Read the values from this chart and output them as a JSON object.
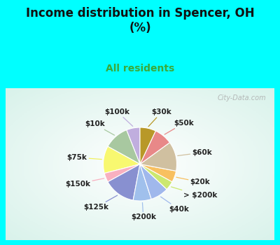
{
  "title": "Income distribution in Spencer, OH\n(%)",
  "subtitle": "All residents",
  "title_color": "#111111",
  "subtitle_color": "#3aaa3a",
  "background_outer": "#00ffff",
  "background_chart": "#e0f0e8",
  "watermark": "City-Data.com",
  "labels": [
    "$100k",
    "$10k",
    "$75k",
    "$150k",
    "$125k",
    "$200k",
    "$40k",
    "> $200k",
    "$20k",
    "$60k",
    "$50k",
    "$30k"
  ],
  "values": [
    6,
    11,
    12,
    4,
    14,
    8,
    8,
    4,
    5,
    13,
    8,
    7
  ],
  "colors": [
    "#c0aede",
    "#a8c8a0",
    "#f8f870",
    "#f8b0c0",
    "#8890d0",
    "#a0c0ec",
    "#a0b8ec",
    "#cce870",
    "#f8c060",
    "#d0c0a0",
    "#e88888",
    "#b89828"
  ],
  "line_colors": [
    "#c0aede",
    "#a8c8a0",
    "#f0f060",
    "#f8b0c0",
    "#8890d0",
    "#a0c0ec",
    "#a0b8ec",
    "#cce870",
    "#f8c060",
    "#d0c0a0",
    "#e88888",
    "#b89828"
  ]
}
